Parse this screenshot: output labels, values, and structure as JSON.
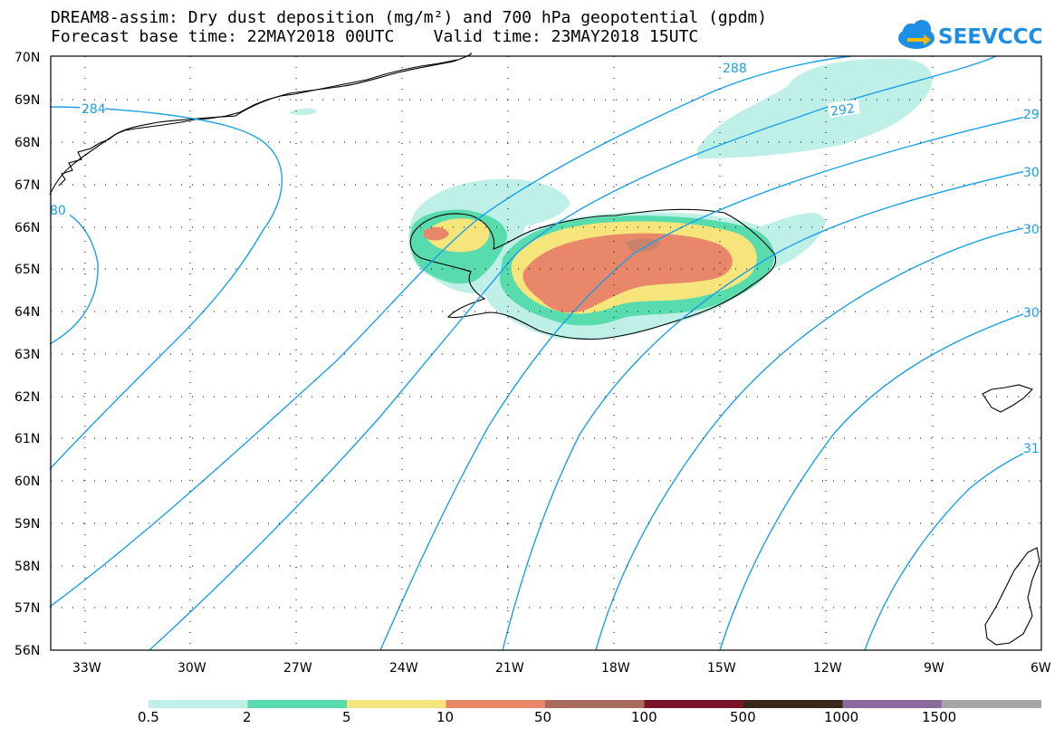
{
  "header": {
    "title_line1": "DREAM8-assim: Dry dust deposition (mg/m²) and 700 hPa geopotential (gpdm)",
    "title_line2": "Forecast base time: 22MAY2018 00UTC    Valid time: 23MAY2018 15UTC"
  },
  "logo": {
    "text": "SEEVCCC",
    "icon": "cloud-arrow-icon"
  },
  "map": {
    "lat_labels": [
      "70N",
      "69N",
      "68N",
      "67N",
      "66N",
      "65N",
      "64N",
      "63N",
      "62N",
      "61N",
      "60N",
      "59N",
      "58N",
      "57N",
      "56N"
    ],
    "lon_labels": [
      "33W",
      "30W",
      "27W",
      "24W",
      "21W",
      "18W",
      "15W",
      "12W",
      "9W",
      "6W"
    ],
    "contour_labels": [
      "284",
      "80",
      "288",
      "292",
      "29",
      "30",
      "30",
      "30",
      "31"
    ],
    "contour_color": "#1aa0e8",
    "coast_color": "#000000"
  },
  "legend": {
    "labels": [
      "0.5",
      "2",
      "5",
      "10",
      "50",
      "100",
      "500",
      "1000",
      "1500"
    ],
    "colors": [
      "#bff0e8",
      "#58dcae",
      "#f5e57a",
      "#e8876a",
      "#a86a5c",
      "#7a1228",
      "#3a2618",
      "#8c6a9e",
      "#a6a6a6"
    ]
  }
}
